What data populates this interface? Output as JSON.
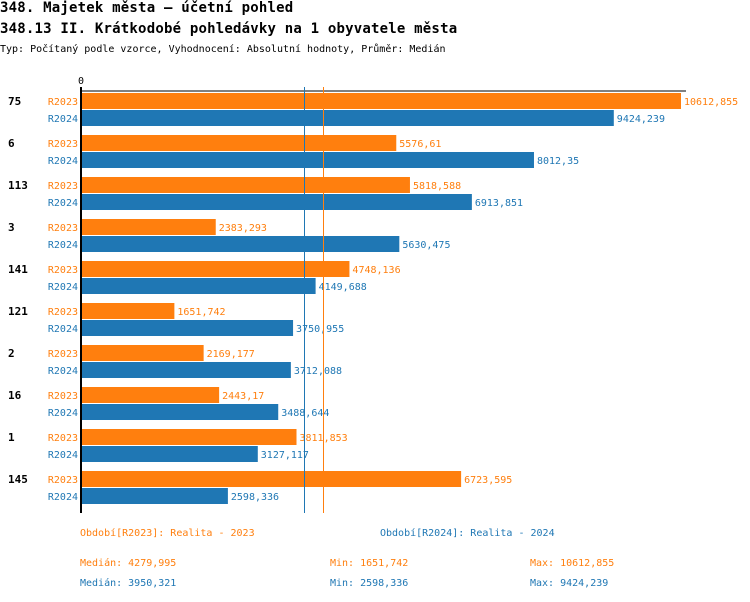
{
  "header": {
    "title": "348. Majetek města – účetní pohled",
    "subtitle": "348.13 II. Krátkodobé pohledávky na 1 obyvatele města",
    "description": "Typ: Počítaný podle vzorce, Vyhodnocení: Absolutní hodnoty, Průměr: Medián"
  },
  "colors": {
    "R2023": "#ff7f0e",
    "R2024": "#1f77b4",
    "axis": "#000000"
  },
  "chart_data": {
    "type": "bar",
    "orientation": "horizontal",
    "title": "348.13 II. Krátkodobé pohledávky na 1 obyvatele města",
    "x_tick_labels": [
      "0"
    ],
    "xlim": [
      0,
      10612.855
    ],
    "categories": [
      "75",
      "6",
      "113",
      "3",
      "141",
      "121",
      "2",
      "16",
      "1",
      "145"
    ],
    "series": [
      {
        "name": "R2023",
        "values": [
          10612.855,
          5576.61,
          5818.588,
          2383.293,
          4748.136,
          1651.742,
          2169.177,
          2443.17,
          3811.853,
          6723.595
        ],
        "labels": [
          "10612,855",
          "5576,61",
          "5818,588",
          "2383,293",
          "4748,136",
          "1651,742",
          "2169,177",
          "2443,17",
          "3811,853",
          "6723,595"
        ]
      },
      {
        "name": "R2024",
        "values": [
          9424.239,
          8012.35,
          6913.851,
          5630.475,
          4149.688,
          3750.955,
          3712.088,
          3488.644,
          3127.117,
          2598.336
        ],
        "labels": [
          "9424,239",
          "8012,35",
          "6913,851",
          "5630,475",
          "4149,688",
          "3750,955",
          "3712,088",
          "3488,644",
          "3127,117",
          "2598,336"
        ]
      }
    ],
    "reference_lines": [
      {
        "series": "R2024",
        "type": "median",
        "value": 3950.321
      },
      {
        "series": "R2023",
        "type": "median",
        "value": 4279.995
      }
    ],
    "legend": {
      "placement": "bottom",
      "R2023": "Období[R2023]: Realita - 2023",
      "R2024": "Období[R2024]: Realita - 2024"
    },
    "stats": {
      "R2023": {
        "median": "Medián: 4279,995",
        "min": "Min: 1651,742",
        "max": "Max: 10612,855"
      },
      "R2024": {
        "median": "Medián: 3950,321",
        "min": "Min: 2598,336",
        "max": "Max: 9424,239"
      }
    }
  }
}
